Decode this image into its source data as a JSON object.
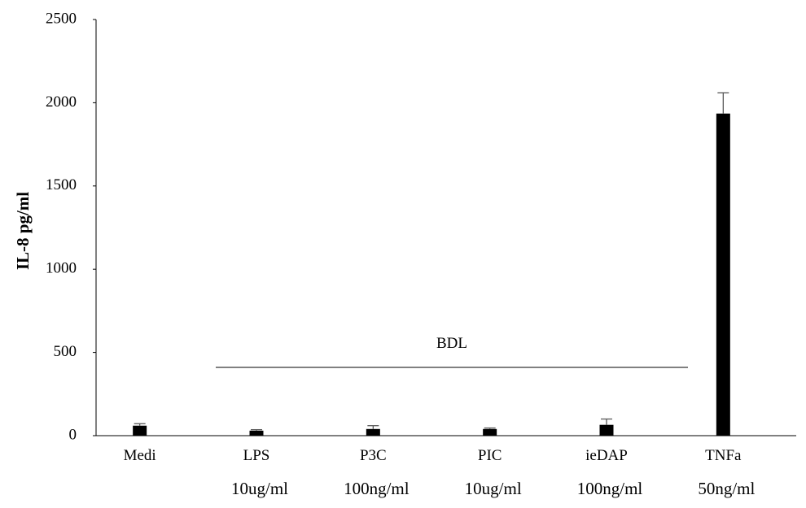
{
  "chart_data": {
    "type": "bar",
    "title": "",
    "xlabel": "",
    "ylabel": "IL-8 pg/ml",
    "ylim": [
      0,
      2500
    ],
    "yticks": [
      0,
      500,
      1000,
      1500,
      2000,
      2500
    ],
    "grid": false,
    "legend": "none",
    "categories": [
      "Medi",
      "LPS",
      "P3C",
      "PIC",
      "ieDAP",
      "TNFa"
    ],
    "concentrations": [
      "",
      "10ug/ml",
      "100ng/ml",
      "10ug/ml",
      "100ng/ml",
      "50ng/ml"
    ],
    "values": [
      60,
      30,
      40,
      40,
      65,
      1935
    ],
    "errors": [
      12,
      6,
      20,
      6,
      35,
      125
    ],
    "annotation": {
      "text": "BDL",
      "value": 410,
      "from_category": "LPS",
      "to_category": "ieDAP"
    },
    "colors": {
      "bar": "#000000",
      "error_bar": "#595959",
      "axis": "#000000"
    }
  }
}
